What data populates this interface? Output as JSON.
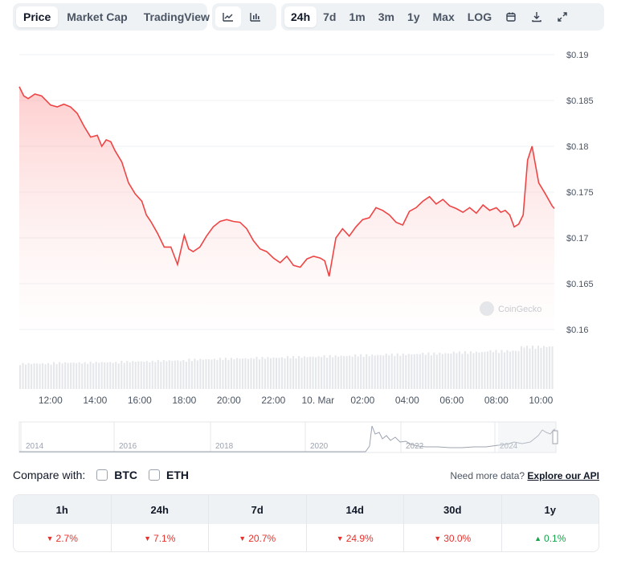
{
  "toolbar": {
    "type_tabs": [
      "Price",
      "Market Cap",
      "TradingView"
    ],
    "active_type": "Price",
    "style_icons": [
      "line-chart-icon",
      "candlestick-chart-icon"
    ],
    "ranges": [
      "24h",
      "7d",
      "1m",
      "3m",
      "1y",
      "Max",
      "LOG"
    ],
    "active_range": "24h",
    "tool_icons": [
      "calendar-icon",
      "download-icon",
      "expand-icon"
    ]
  },
  "colors": {
    "line": "#ef4444",
    "fill": "#fde2e2",
    "volume": "#e5e7eb",
    "grid": "#eef0f3",
    "text_muted": "#4b5563",
    "positive": "#16a34a",
    "negative": "#e5322d"
  },
  "watermark": "CoinGecko",
  "chart_data": {
    "type": "area",
    "title": "",
    "ylabel": "",
    "xlabel": "",
    "y_ticks": [
      "$0.19",
      "$0.185",
      "$0.18",
      "$0.175",
      "$0.17",
      "$0.165",
      "$0.16"
    ],
    "ylim": [
      0.16,
      0.19
    ],
    "x_ticks": [
      "12:00",
      "14:00",
      "16:00",
      "18:00",
      "20:00",
      "22:00",
      "10. Mar",
      "02:00",
      "04:00",
      "06:00",
      "08:00",
      "10:00"
    ],
    "x_tick_hours": [
      12,
      14,
      16,
      18,
      20,
      22,
      24,
      26,
      28,
      30,
      32,
      34
    ],
    "xlim_hours": [
      10.6,
      34.6
    ],
    "grid": true,
    "series": [
      {
        "x_hours": [
          10.6,
          10.8,
          11.0,
          11.3,
          11.6,
          12.0,
          12.3,
          12.6,
          12.9,
          13.2,
          13.5,
          13.8,
          14.1,
          14.3,
          14.5,
          14.7,
          14.9,
          15.2,
          15.5,
          15.8,
          16.1,
          16.3,
          16.5,
          16.8,
          17.1,
          17.4,
          17.7,
          18.0,
          18.2,
          18.4,
          18.7,
          19.0,
          19.3,
          19.6,
          19.9,
          20.2,
          20.5,
          20.8,
          21.1,
          21.4,
          21.7,
          22.0,
          22.3,
          22.6,
          22.9,
          23.2,
          23.5,
          23.8,
          24.1,
          24.3,
          24.5,
          24.8,
          25.1,
          25.4,
          25.7,
          26.0,
          26.3,
          26.6,
          26.9,
          27.2,
          27.5,
          27.8,
          28.1,
          28.4,
          28.7,
          29.0,
          29.3,
          29.6,
          29.9,
          30.2,
          30.5,
          30.8,
          31.1,
          31.4,
          31.7,
          32.0,
          32.2,
          32.4,
          32.6,
          32.8,
          33.0,
          33.2,
          33.4,
          33.6,
          33.9,
          34.2,
          34.5,
          34.6
        ],
        "values": [
          0.1865,
          0.1855,
          0.1852,
          0.1857,
          0.1855,
          0.1845,
          0.1843,
          0.1846,
          0.1843,
          0.1836,
          0.1822,
          0.181,
          0.1812,
          0.18,
          0.1807,
          0.1805,
          0.1795,
          0.1783,
          0.176,
          0.1748,
          0.174,
          0.1725,
          0.1718,
          0.1705,
          0.169,
          0.169,
          0.1671,
          0.1703,
          0.1688,
          0.1685,
          0.169,
          0.1702,
          0.1712,
          0.1718,
          0.172,
          0.1718,
          0.1717,
          0.171,
          0.1697,
          0.1688,
          0.1685,
          0.1678,
          0.1673,
          0.168,
          0.167,
          0.1668,
          0.1677,
          0.168,
          0.1678,
          0.1675,
          0.1658,
          0.17,
          0.171,
          0.1702,
          0.1712,
          0.172,
          0.1722,
          0.1733,
          0.173,
          0.1725,
          0.1717,
          0.1714,
          0.1729,
          0.1733,
          0.174,
          0.1745,
          0.1737,
          0.1742,
          0.1735,
          0.1732,
          0.1728,
          0.1733,
          0.1727,
          0.1736,
          0.173,
          0.1733,
          0.1728,
          0.173,
          0.1725,
          0.1712,
          0.1715,
          0.1725,
          0.1785,
          0.18,
          0.176,
          0.1748,
          0.1735,
          0.1732
        ]
      }
    ],
    "volume": {
      "x_start_hour": 10.6,
      "x_end_hour": 34.6,
      "relative_heights": [
        0.6,
        0.62,
        0.63,
        0.65,
        0.67,
        0.7,
        0.72,
        0.74,
        0.76,
        0.78,
        0.8,
        0.82,
        0.84,
        0.87,
        0.9,
        1.0
      ]
    }
  },
  "navigator": {
    "year_labels": [
      "2014",
      "2016",
      "2018",
      "2020",
      "2022",
      "2024"
    ]
  },
  "compare": {
    "label": "Compare with:",
    "options": [
      "BTC",
      "ETH"
    ]
  },
  "api": {
    "text": "Need more data?",
    "link": "Explore our API"
  },
  "performance": {
    "headers": [
      "1h",
      "24h",
      "7d",
      "14d",
      "30d",
      "1y"
    ],
    "values": [
      "2.7%",
      "7.1%",
      "20.7%",
      "24.9%",
      "30.0%",
      "0.1%"
    ],
    "directions": [
      "down",
      "down",
      "down",
      "down",
      "down",
      "up"
    ]
  }
}
